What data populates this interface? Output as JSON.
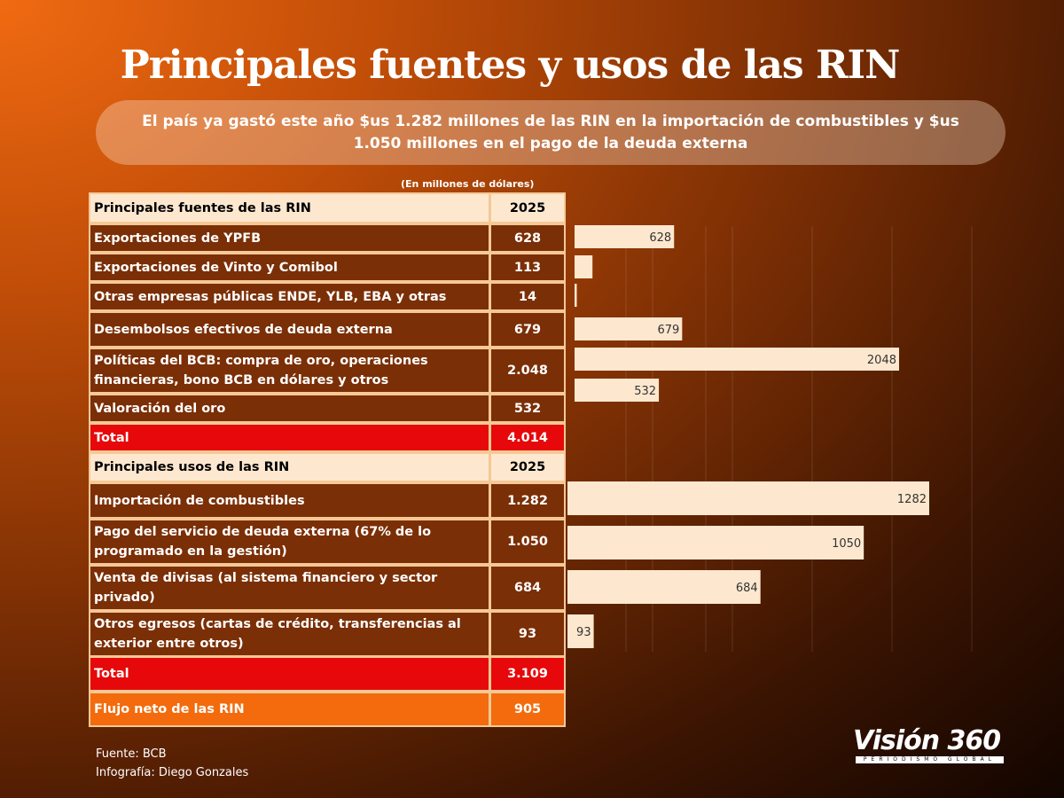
{
  "title": "Principales fuentes y usos de las RIN",
  "subtitle": "El país ya gastó este año $us 1.282 millones de las RIN en la importación de combustibles y $us 1.050 millones en el pago de la deuda externa",
  "units": "(En millones de dólares)",
  "sources_header": {
    "label": "Principales fuentes de las RIN",
    "year": "2025"
  },
  "sources": [
    {
      "label": "Exportaciones de YPFB",
      "value": "628"
    },
    {
      "label": "Exportaciones de Vinto y Comibol",
      "value": "113"
    },
    {
      "label": "Otras empresas públicas ENDE, YLB, EBA y otras",
      "value": "14"
    },
    {
      "label": "Desembolsos efectivos de deuda externa",
      "value": "679"
    },
    {
      "label": "Políticas del BCB: compra de oro,  operaciones financieras, bono BCB en dólares y otros",
      "value": "2.048"
    },
    {
      "label": "Valoración del oro",
      "value": "532"
    }
  ],
  "sources_total": {
    "label": "Total",
    "value": "4.014"
  },
  "uses_header": {
    "label": "Principales usos de las RIN",
    "year": "2025"
  },
  "uses": [
    {
      "label": "Importación de combustibles",
      "value": "1.282"
    },
    {
      "label": "Pago del servicio de deuda externa (67% de lo programado en la gestión)",
      "value": "1.050"
    },
    {
      "label": "Venta de divisas (al sistema financiero y sector privado)",
      "value": "684"
    },
    {
      "label": "Otros egresos (cartas de crédito, transferencias al exterior entre otros)",
      "value": "93"
    }
  ],
  "uses_total": {
    "label": "Total",
    "value": "3.109"
  },
  "net": {
    "label": "Flujo neto de las RIN",
    "value": "905"
  },
  "credits": {
    "source": "Fuente:  BCB",
    "author": "Infografía: Diego Gonzales"
  },
  "logo": {
    "name": "Visión 360",
    "tagline": "PERIODISMO GLOBAL"
  },
  "chart_data": [
    {
      "type": "bar",
      "title": "Principales fuentes de las RIN",
      "categories": [
        "Exportaciones de YPFB",
        "Exportaciones de Vinto y Comibol",
        "Otras empresas públicas ENDE, YLB, EBA y otras",
        "Desembolsos efectivos de deuda externa",
        "Políticas del BCB",
        "Valoración del oro"
      ],
      "values": [
        628,
        113,
        14,
        679,
        2048,
        532
      ],
      "labels": [
        "628",
        "",
        "",
        "679",
        "2048",
        "532"
      ],
      "orientation": "horizontal",
      "color": "#fde8cf"
    },
    {
      "type": "bar",
      "title": "Principales usos de las RIN",
      "categories": [
        "Importación de combustibles",
        "Pago del servicio de deuda externa",
        "Venta de divisas",
        "Otros egresos"
      ],
      "values": [
        1282,
        1050,
        684,
        93
      ],
      "labels": [
        "1282",
        "1050",
        "684",
        "93"
      ],
      "orientation": "horizontal",
      "color": "#fde8cf"
    }
  ]
}
